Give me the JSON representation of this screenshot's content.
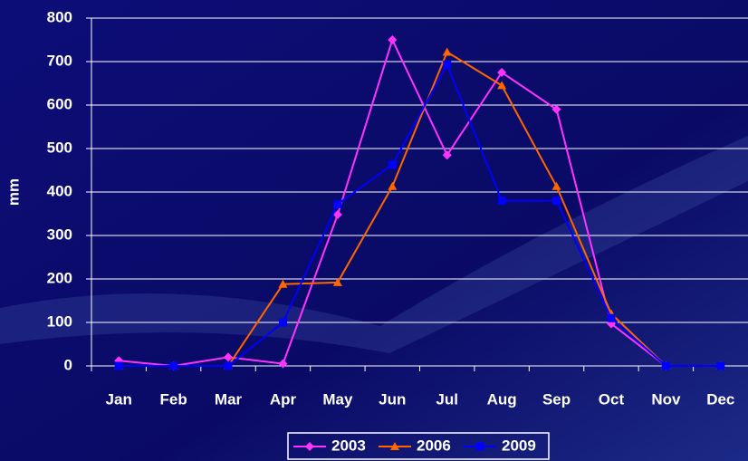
{
  "chart_data": {
    "type": "line",
    "y_label": "mm",
    "categories": [
      "Jan",
      "Feb",
      "Mar",
      "Apr",
      "May",
      "Jun",
      "Jul",
      "Aug",
      "Sep",
      "Oct",
      "Nov",
      "Dec"
    ],
    "series": [
      {
        "name": "2003",
        "color": "#ff33ff",
        "marker": "diamond",
        "values": [
          12,
          0,
          20,
          5,
          348,
          750,
          485,
          675,
          590,
          97,
          0,
          0
        ]
      },
      {
        "name": "2006",
        "color": "#ff6600",
        "marker": "triangle",
        "values": [
          0,
          0,
          0,
          188,
          192,
          413,
          722,
          645,
          413,
          120,
          0,
          0
        ]
      },
      {
        "name": "2009",
        "color": "#0000ff",
        "marker": "square",
        "values": [
          0,
          0,
          0,
          100,
          372,
          463,
          693,
          380,
          380,
          110,
          0,
          0
        ]
      }
    ],
    "ylim": [
      0,
      800
    ],
    "yticks": [
      0,
      100,
      200,
      300,
      400,
      500,
      600,
      700,
      800
    ],
    "grid": true
  }
}
